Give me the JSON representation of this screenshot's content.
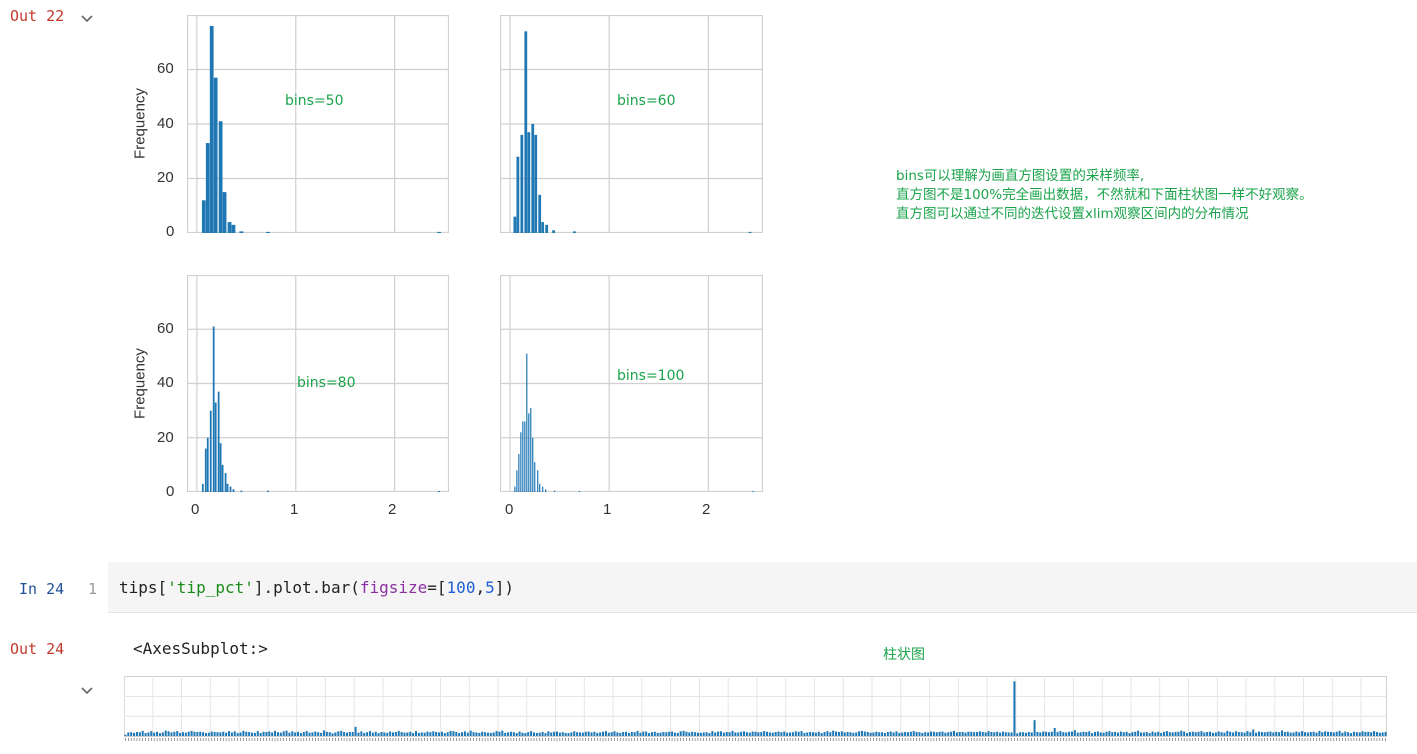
{
  "cells": {
    "out22": {
      "prompt": "Out 22"
    },
    "in24": {
      "prompt": "In 24",
      "line_no": "1",
      "code": {
        "p1": "tips[",
        "s1": "'tip_pct'",
        "p2": "].plot.bar(",
        "k1": "figsize",
        "p3": "=[",
        "n1": "100",
        "p4": ",",
        "n2": "5",
        "p5": "])"
      }
    },
    "out24": {
      "prompt": "Out 24",
      "text": "<AxesSubplot:>"
    }
  },
  "annotations": {
    "note_lines": [
      "bins可以理解为画直方图设置的采样频率,",
      "直方图不是100%完全画出数据，不然就和下面柱状图一样不好观察。",
      "直方图可以通过不同的迭代设置xlim观察区间内的分布情况"
    ],
    "bar_chart_label": "柱状图"
  },
  "colors": {
    "bar": "#1f77b4",
    "grid": "#d0d0d0",
    "annotation": "#1aa34a",
    "out_prompt": "#c0392b",
    "in_prompt": "#1f4f9a"
  },
  "chart_data": [
    {
      "type": "bar",
      "subtitle_annotation": "bins=50",
      "ylabel": "Frequency",
      "yticks": [
        "0",
        "20",
        "40",
        "60"
      ],
      "xticks": [],
      "ylim": [
        0,
        80
      ],
      "xlim": [
        -0.1,
        2.55
      ],
      "bins": [
        [
          0.07,
          12
        ],
        [
          0.11,
          33
        ],
        [
          0.15,
          76
        ],
        [
          0.19,
          57
        ],
        [
          0.24,
          41
        ],
        [
          0.28,
          15
        ],
        [
          0.33,
          4
        ],
        [
          0.37,
          3
        ],
        [
          0.45,
          0.6
        ],
        [
          0.72,
          0.4
        ],
        [
          2.45,
          0.4
        ]
      ],
      "bar_width": 0.038
    },
    {
      "type": "bar",
      "subtitle_annotation": "bins=60",
      "ylabel": "",
      "yticks": [],
      "xticks": [],
      "ylim": [
        0,
        80
      ],
      "xlim": [
        -0.1,
        2.55
      ],
      "bins": [
        [
          0.05,
          6
        ],
        [
          0.08,
          28
        ],
        [
          0.12,
          36
        ],
        [
          0.16,
          74
        ],
        [
          0.19,
          37
        ],
        [
          0.23,
          40
        ],
        [
          0.26,
          36
        ],
        [
          0.3,
          14
        ],
        [
          0.33,
          4
        ],
        [
          0.37,
          3
        ],
        [
          0.44,
          1
        ],
        [
          0.65,
          0.6
        ],
        [
          2.42,
          0.4
        ]
      ],
      "bar_width": 0.028
    },
    {
      "type": "bar",
      "subtitle_annotation": "bins=80",
      "ylabel": "Frequency",
      "yticks": [
        "0",
        "20",
        "40",
        "60"
      ],
      "xticks": [
        "0",
        "1",
        "2"
      ],
      "ylim": [
        0,
        80
      ],
      "xlim": [
        -0.1,
        2.55
      ],
      "bins": [
        [
          0.06,
          3
        ],
        [
          0.09,
          16
        ],
        [
          0.11,
          20
        ],
        [
          0.14,
          30
        ],
        [
          0.17,
          61
        ],
        [
          0.19,
          33
        ],
        [
          0.22,
          37
        ],
        [
          0.24,
          18
        ],
        [
          0.26,
          10
        ],
        [
          0.29,
          7
        ],
        [
          0.31,
          3
        ],
        [
          0.34,
          2
        ],
        [
          0.37,
          1
        ],
        [
          0.45,
          0.5
        ],
        [
          0.72,
          0.5
        ],
        [
          2.45,
          0.4
        ]
      ],
      "bar_width": 0.018
    },
    {
      "type": "bar",
      "subtitle_annotation": "bins=100",
      "ylabel": "",
      "yticks": [],
      "xticks": [
        "0",
        "1",
        "2"
      ],
      "ylim": [
        0,
        80
      ],
      "xlim": [
        -0.1,
        2.55
      ],
      "bins": [
        [
          0.05,
          2
        ],
        [
          0.07,
          8
        ],
        [
          0.09,
          14
        ],
        [
          0.11,
          22
        ],
        [
          0.13,
          26
        ],
        [
          0.15,
          26
        ],
        [
          0.17,
          51
        ],
        [
          0.19,
          29
        ],
        [
          0.21,
          31
        ],
        [
          0.23,
          20
        ],
        [
          0.25,
          11
        ],
        [
          0.28,
          8
        ],
        [
          0.3,
          3
        ],
        [
          0.33,
          2
        ],
        [
          0.36,
          1
        ],
        [
          0.45,
          0.5
        ],
        [
          0.7,
          0.4
        ],
        [
          2.45,
          0.4
        ]
      ],
      "bar_width": 0.012
    },
    {
      "type": "bar",
      "title": "",
      "note": "tips['tip_pct'] plotted as a bar per row (partially visible)",
      "values": [
        0.06,
        0.16,
        0.17,
        0.14,
        0.18,
        0.17,
        0.23,
        0.13,
        0.16,
        0.22,
        0.15,
        0.19,
        0.13,
        0.16,
        0.24,
        0.21,
        0.16,
        0.19,
        0.22,
        0.14,
        0.17,
        0.15,
        0.19,
        0.23,
        0.19,
        0.18,
        0.19,
        0.17,
        0.13,
        0.15,
        0.2,
        0.18,
        0.17,
        0.16,
        0.19,
        0.15,
        0.22,
        0.16,
        0.21,
        0.13,
        0.16,
        0.23,
        0.19,
        0.18,
        0.15,
        0.14,
        0.22,
        0.13,
        0.19,
        0.18,
        0.2,
        0.16,
        0.23,
        0.17,
        0.15,
        0.21,
        0.24,
        0.15,
        0.21,
        0.16,
        0.19,
        0.13,
        0.18,
        0.22,
        0.15,
        0.16,
        0.2,
        0.17,
        0.14,
        0.25,
        0.19,
        0.17,
        0.12,
        0.16,
        0.21,
        0.23,
        0.18,
        0.15,
        0.18,
        0.18,
        0.41,
        0.15,
        0.21,
        0.14,
        0.17,
        0.22,
        0.15,
        0.19,
        0.13,
        0.18,
        0.16,
        0.14,
        0.2,
        0.16,
        0.18,
        0.23,
        0.18,
        0.15,
        0.16,
        0.19,
        0.13,
        0.22,
        0.14,
        0.16,
        0.15,
        0.2,
        0.17,
        0.21,
        0.18,
        0.16,
        0.19,
        0.13,
        0.17,
        0.23,
        0.22,
        0.18,
        0.13,
        0.17,
        0.21,
        0.15,
        0.24,
        0.17,
        0.16,
        0.14,
        0.19,
        0.17,
        0.15,
        0.14,
        0.16,
        0.22,
        0.19,
        0.24,
        0.14,
        0.16,
        0.19,
        0.17,
        0.13,
        0.2,
        0.15,
        0.13,
        0.17,
        0.22,
        0.16,
        0.14,
        0.15,
        0.18,
        0.13,
        0.21,
        0.16,
        0.19,
        0.2,
        0.15,
        0.17,
        0.14,
        0.13,
        0.16,
        0.21,
        0.17,
        0.16,
        0.15,
        0.19,
        0.2,
        0.16,
        0.19,
        0.14,
        0.16,
        0.19,
        0.22,
        0.15,
        0.17,
        0.21,
        0.16,
        0.14,
        0.18,
        0.19,
        0.14,
        0.18,
        0.17,
        0.23,
        0.15,
        0.2,
        0.2,
        0.13,
        0.17,
        0.19,
        0.14,
        0.15,
        0.18,
        0.17,
        0.19,
        0.2,
        0.15,
        0.14,
        0.21,
        0.23,
        0.19,
        0.16,
        0.19,
        0.17,
        0.15,
        0.14,
        0.16,
        0.17,
        0.13,
        0.22,
        0.16,
        0.2,
        0.21,
        0.15,
        0.18,
        0.17,
        0.23,
        0.16,
        0.16,
        0.19,
        0.21,
        0.17,
        0.15,
        0.2,
        0.19,
        0.17,
        0.18,
        0.22,
        0.19,
        0.16,
        0.15,
        0.18,
        0.2,
        0.17,
        0.2,
        0.15,
        0.16,
        0.17,
        0.21,
        0.19,
        0.22,
        0.14,
        0.16,
        0.18,
        0.17,
        0.15,
        0.19,
        0.13,
        0.18,
        0.22,
        0.17,
        0.24,
        0.2,
        0.18,
        0.21,
        0.16,
        0.18,
        0.17,
        0.14,
        0.16,
        0.21,
        0.23,
        0.2,
        0.18,
        0.15,
        0.16,
        0.19,
        0.17,
        0.17,
        0.13,
        0.18,
        0.2,
        0.16,
        0.21,
        0.14,
        0.16,
        0.18,
        0.17,
        0.19,
        0.22,
        0.18,
        0.17,
        0.14,
        0.17,
        0.16,
        0.2,
        0.19,
        0.17,
        0.19,
        0.2,
        0.15,
        0.17,
        0.19,
        0.23,
        0.16,
        0.18,
        0.18,
        0.15,
        0.19,
        0.19,
        0.17,
        0.18,
        0.21,
        0.18,
        0.16,
        0.22,
        0.18,
        0.17,
        0.19,
        0.15,
        0.2,
        0.17,
        0.16,
        0.16,
        2.45,
        0.12,
        0.17,
        0.17,
        0.14,
        0.18,
        0.16,
        0.71,
        0.18,
        0.16,
        0.2,
        0.19,
        0.17,
        0.19,
        0.36,
        0.18,
        0.22,
        0.17,
        0.16,
        0.19,
        0.2,
        0.26,
        0.15,
        0.17,
        0.19,
        0.18,
        0.21,
        0.13,
        0.18,
        0.2,
        0.16,
        0.15,
        0.19,
        0.22,
        0.17,
        0.18,
        0.15,
        0.2,
        0.17,
        0.19,
        0.13,
        0.17,
        0.19,
        0.24,
        0.16,
        0.16,
        0.18,
        0.13,
        0.2,
        0.16,
        0.19,
        0.14,
        0.19,
        0.22,
        0.17,
        0.16,
        0.18,
        0.19,
        0.24,
        0.2,
        0.13,
        0.18,
        0.19,
        0.17,
        0.19,
        0.22,
        0.16,
        0.18,
        0.19,
        0.14,
        0.16,
        0.2,
        0.17,
        0.15,
        0.23,
        0.19,
        0.16,
        0.21,
        0.18,
        0.17,
        0.15,
        0.22,
        0.17,
        0.29,
        0.15,
        0.2,
        0.18,
        0.17,
        0.19,
        0.2,
        0.16,
        0.19,
        0.17,
        0.25,
        0.18,
        0.19,
        0.15,
        0.16,
        0.2,
        0.17,
        0.22,
        0.17,
        0.16,
        0.18,
        0.19,
        0.15,
        0.23,
        0.17,
        0.21,
        0.19,
        0.18,
        0.16,
        0.19,
        0.23,
        0.15,
        0.2,
        0.17,
        0.13,
        0.19,
        0.17,
        0.16,
        0.21,
        0.18,
        0.19,
        0.17,
        0.22,
        0.18,
        0.15,
        0.16,
        0.18
      ]
    }
  ]
}
